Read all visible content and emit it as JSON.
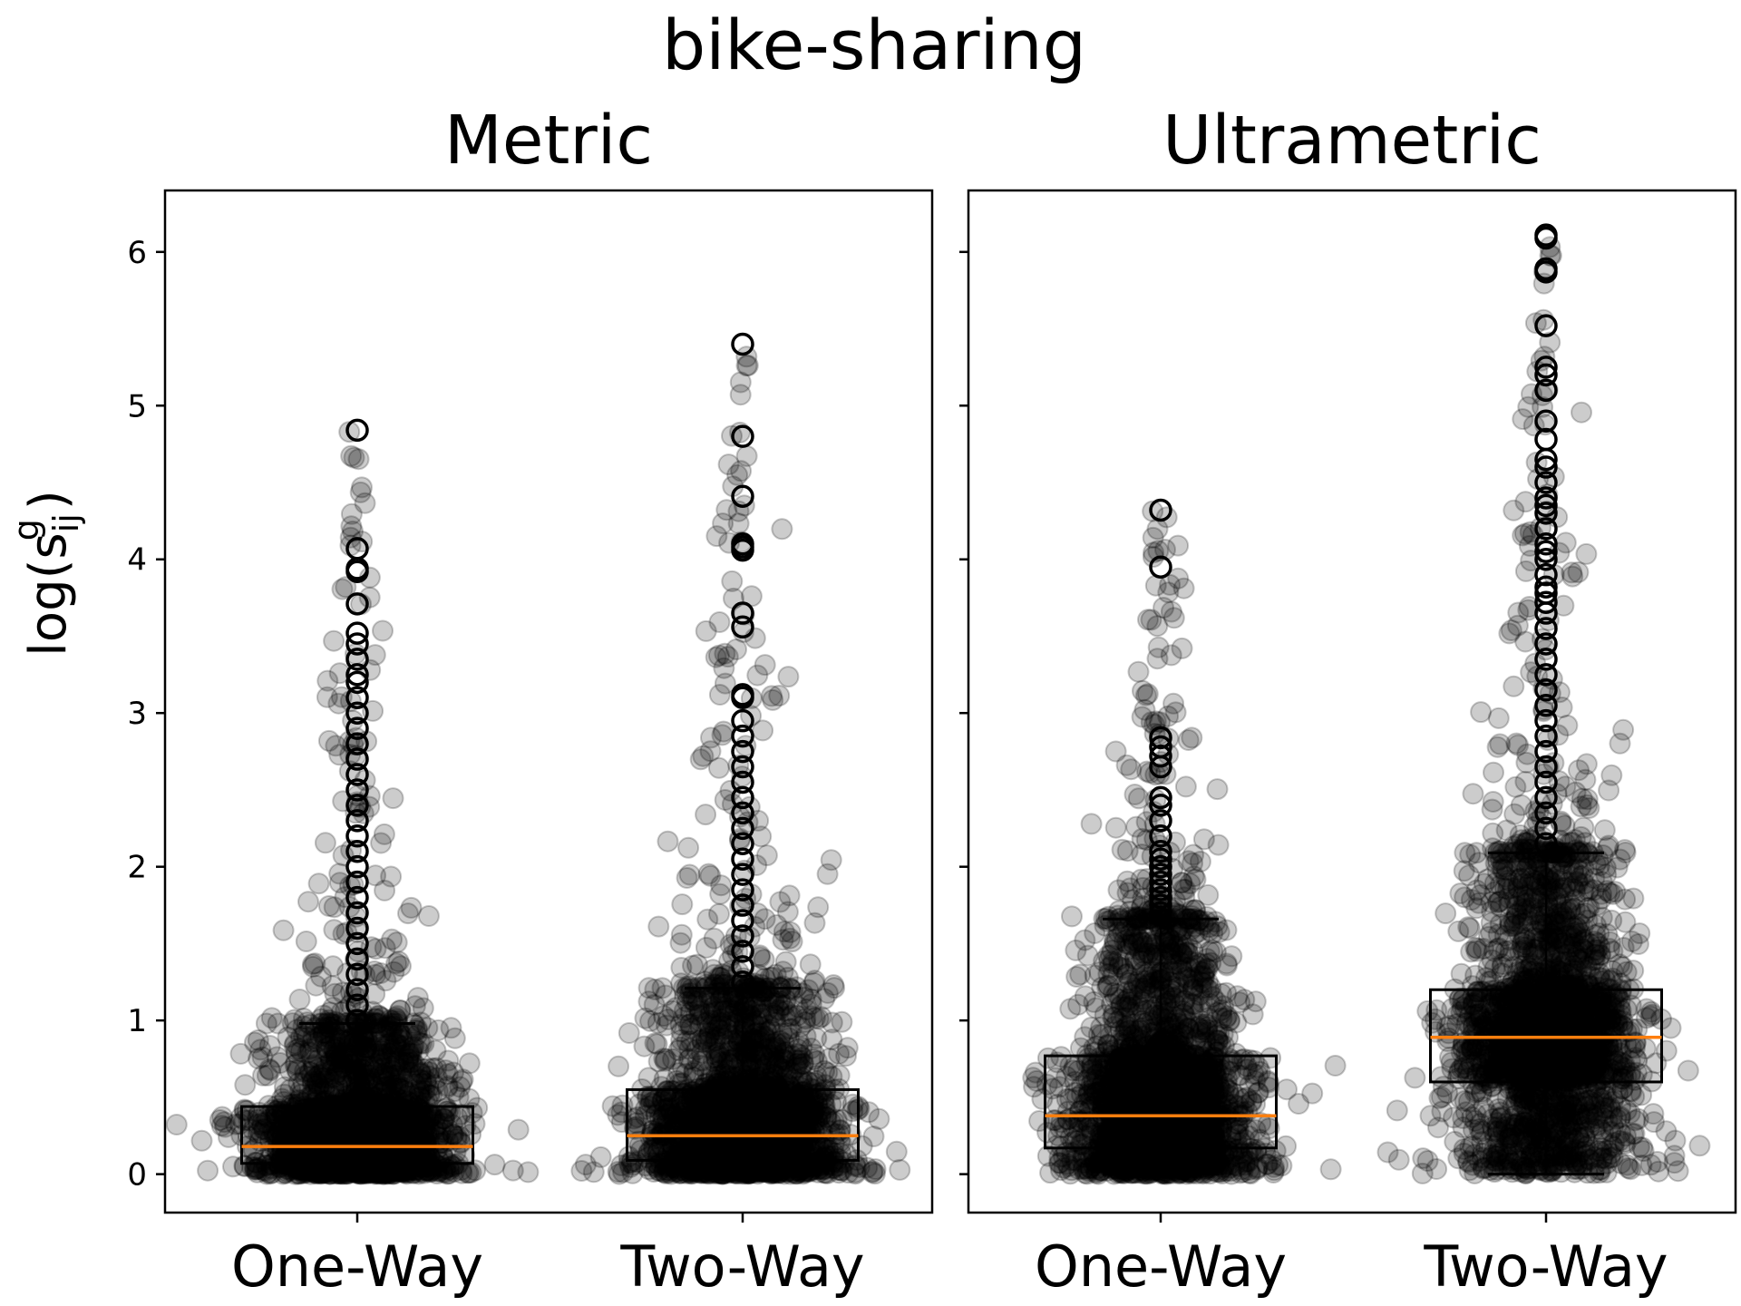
{
  "chart_data": {
    "type": "box",
    "title": "bike-sharing",
    "ylabel": "log(s_ij^g)",
    "ylim": [
      -0.25,
      6.4
    ],
    "yticks": [
      0,
      1,
      2,
      3,
      4,
      5,
      6
    ],
    "categories": [
      "One-Way",
      "Two-Way"
    ],
    "colors": {
      "median": "#ff7f0e",
      "box": "#000000",
      "points": "#000000"
    },
    "panels": [
      {
        "title": "Metric",
        "boxes": [
          {
            "category": "One-Way",
            "whisker_low": 0.0,
            "q1": 0.07,
            "median": 0.18,
            "q3": 0.44,
            "whisker_high": 0.98,
            "outliers": [
              1.0,
              1.1,
              1.2,
              1.3,
              1.4,
              1.5,
              1.6,
              1.7,
              1.8,
              1.9,
              2.0,
              2.1,
              2.2,
              2.3,
              2.4,
              2.5,
              2.6,
              2.7,
              2.8,
              2.9,
              3.0,
              3.1,
              3.2,
              3.25,
              3.35,
              3.45,
              3.52,
              3.71,
              3.92,
              3.94,
              4.07,
              4.84
            ],
            "point_range": [
              0.0,
              4.84
            ]
          },
          {
            "category": "Two-Way",
            "whisker_low": 0.0,
            "q1": 0.09,
            "median": 0.25,
            "q3": 0.55,
            "whisker_high": 1.21,
            "outliers": [
              1.25,
              1.35,
              1.45,
              1.55,
              1.65,
              1.75,
              1.85,
              1.95,
              2.05,
              2.15,
              2.25,
              2.35,
              2.45,
              2.55,
              2.65,
              2.75,
              2.85,
              2.95,
              3.1,
              3.12,
              3.56,
              3.65,
              4.06,
              4.08,
              4.1,
              4.41,
              4.8,
              5.4
            ],
            "point_range": [
              0.0,
              5.4
            ]
          }
        ]
      },
      {
        "title": "Ultrametric",
        "boxes": [
          {
            "category": "One-Way",
            "whisker_low": 0.0,
            "q1": 0.17,
            "median": 0.38,
            "q3": 0.77,
            "whisker_high": 1.66,
            "outliers": [
              1.7,
              1.75,
              1.8,
              1.85,
              1.9,
              1.95,
              2.0,
              2.05,
              2.1,
              2.2,
              2.3,
              2.4,
              2.45,
              2.65,
              2.72,
              2.78,
              2.84,
              3.95,
              4.32
            ],
            "point_range": [
              0.0,
              4.32
            ]
          },
          {
            "category": "Two-Way",
            "whisker_low": 0.0,
            "q1": 0.6,
            "median": 0.89,
            "q3": 1.2,
            "whisker_high": 2.09,
            "outliers": [
              2.15,
              2.25,
              2.35,
              2.45,
              2.55,
              2.65,
              2.75,
              2.85,
              2.95,
              3.05,
              3.15,
              3.25,
              3.35,
              3.45,
              3.55,
              3.65,
              3.72,
              3.78,
              3.82,
              3.9,
              4.0,
              4.05,
              4.1,
              4.2,
              4.3,
              4.35,
              4.4,
              4.5,
              4.6,
              4.65,
              4.78,
              4.9,
              5.1,
              5.2,
              5.25,
              5.52,
              5.87,
              5.89,
              6.09,
              6.11
            ],
            "point_range": [
              0.0,
              6.11
            ]
          }
        ]
      }
    ]
  }
}
